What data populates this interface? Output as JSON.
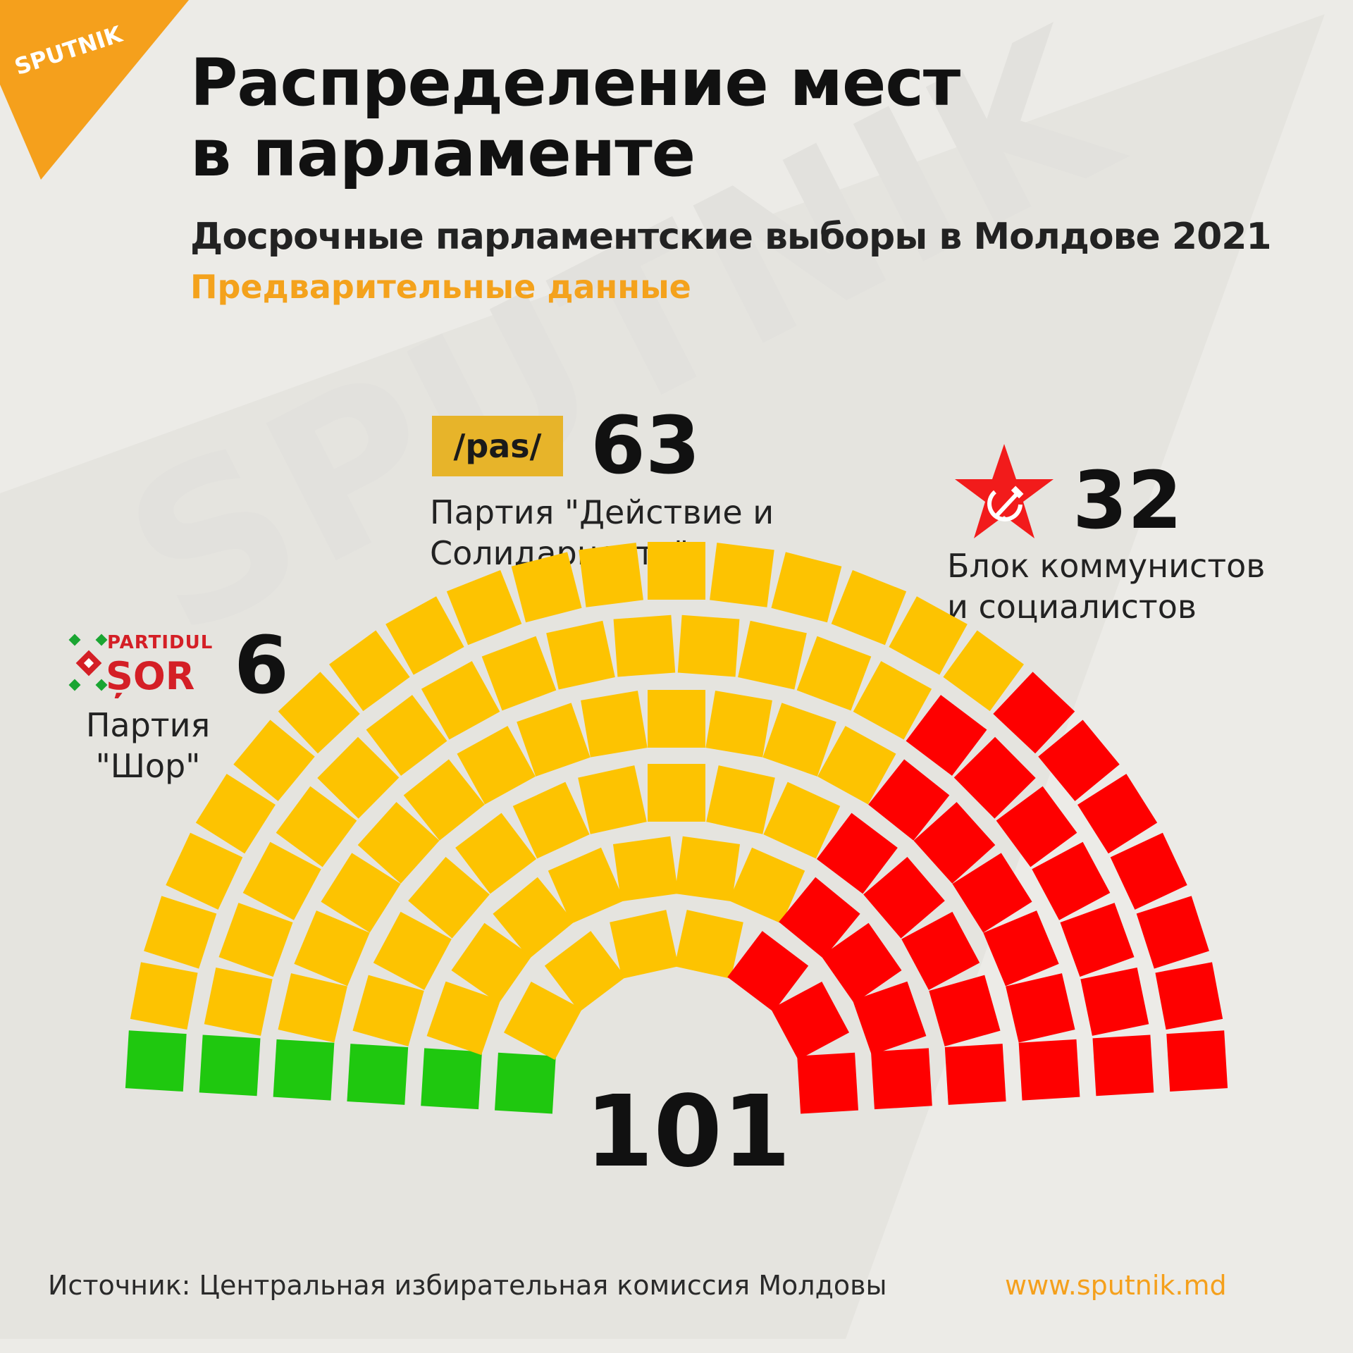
{
  "brand": {
    "logo_text": "SPUTNIK",
    "watermark_text": "SPUTNIK",
    "color": "#f5a01c"
  },
  "header": {
    "title_line1": "Распределение мест",
    "title_line2": "в парламенте",
    "subtitle": "Досрочные парламентские выборы в Молдове 2021",
    "note": "Предварительные данные"
  },
  "chart_data": {
    "type": "parliament",
    "total": "101",
    "parties": [
      {
        "name": "Партия \"Шор\"",
        "name_line1": "Партия",
        "name_line2": "\"Шор\"",
        "seats": 6,
        "seats_label": "6",
        "color": "#1fc80f",
        "logo_line1": "PARTIDUL",
        "logo_line2": "ȘOR"
      },
      {
        "name": "Партия \"Действие и Солидарность\"",
        "name_line1": "Партия \"Действие и",
        "name_line2": "Солидарность\"",
        "seats": 63,
        "seats_label": "63",
        "color": "#fdc301",
        "logo_text": "/pas/"
      },
      {
        "name": "Блок коммунистов и социалистов",
        "name_line1": "Блок коммунистов",
        "name_line2": "и социалистов",
        "seats": 32,
        "seats_label": "32",
        "color": "#fe0000",
        "logo_icon": "red-star-hammer-sickle-icon"
      }
    ]
  },
  "footer": {
    "source": "Источник: Центральная избирательная комиссия Молдовы",
    "website": "www.sputnik.md"
  }
}
